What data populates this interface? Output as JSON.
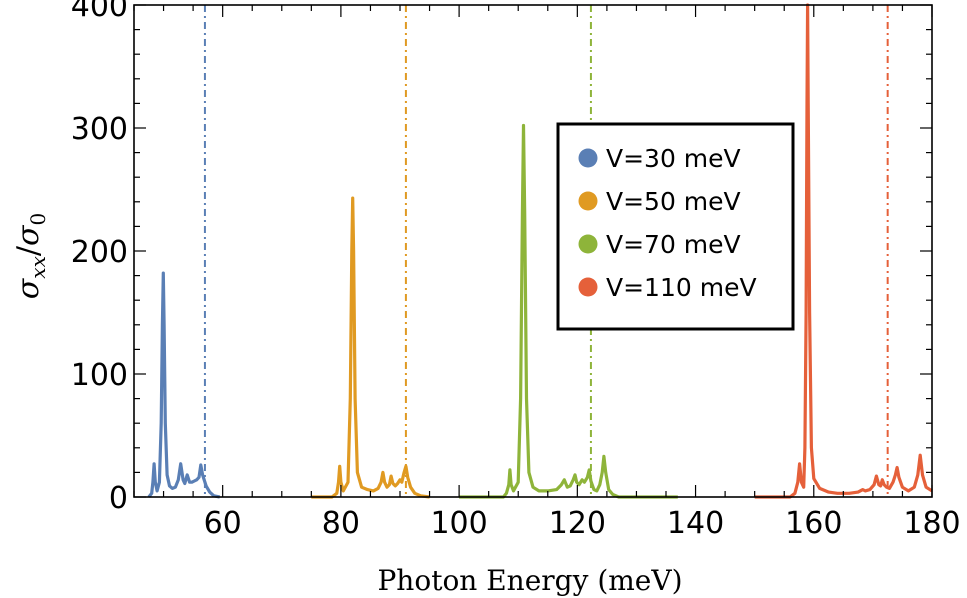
{
  "chart_data": {
    "type": "line",
    "xlabel": "Photon Energy  (meV)",
    "ylabel": "σxx/σ0",
    "ylabel_parts": {
      "sigma": "σ",
      "num_sub": "xx",
      "slash": "/",
      "den_sub": "0"
    },
    "xlim": [
      45,
      180
    ],
    "ylim": [
      0,
      400
    ],
    "x_ticks": [
      60,
      80,
      100,
      120,
      140,
      160,
      180
    ],
    "y_ticks": [
      0,
      100,
      200,
      300,
      400
    ],
    "legend_position": "center-right",
    "series": [
      {
        "name": "V=30 meV",
        "color": "#5a7fb5",
        "threshold_x": 57.0,
        "points": [
          [
            47.5,
            0
          ],
          [
            48.0,
            3
          ],
          [
            48.2,
            12
          ],
          [
            48.4,
            27
          ],
          [
            48.6,
            12
          ],
          [
            48.9,
            5
          ],
          [
            49.3,
            12
          ],
          [
            49.6,
            60
          ],
          [
            49.8,
            140
          ],
          [
            49.95,
            182
          ],
          [
            50.1,
            140
          ],
          [
            50.3,
            60
          ],
          [
            50.6,
            18
          ],
          [
            51.0,
            9
          ],
          [
            51.5,
            7
          ],
          [
            52.0,
            8
          ],
          [
            52.5,
            14
          ],
          [
            52.9,
            27
          ],
          [
            53.3,
            14
          ],
          [
            53.6,
            11
          ],
          [
            54.0,
            18
          ],
          [
            54.4,
            12
          ],
          [
            54.8,
            12
          ],
          [
            55.2,
            13
          ],
          [
            55.6,
            14
          ],
          [
            56.0,
            16
          ],
          [
            56.3,
            26
          ],
          [
            56.6,
            18
          ],
          [
            57.2,
            9
          ],
          [
            57.8,
            4
          ],
          [
            58.5,
            1
          ],
          [
            59.5,
            0
          ]
        ]
      },
      {
        "name": "V=50 meV",
        "color": "#e09a22",
        "threshold_x": 91.0,
        "points": [
          [
            75.0,
            0
          ],
          [
            78.5,
            0
          ],
          [
            79.3,
            3
          ],
          [
            79.6,
            12
          ],
          [
            79.8,
            25
          ],
          [
            80.0,
            12
          ],
          [
            80.4,
            5
          ],
          [
            81.2,
            12
          ],
          [
            81.6,
            80
          ],
          [
            81.85,
            200
          ],
          [
            82.0,
            243
          ],
          [
            82.15,
            200
          ],
          [
            82.4,
            80
          ],
          [
            82.8,
            20
          ],
          [
            83.5,
            8
          ],
          [
            84.5,
            6
          ],
          [
            85.5,
            5
          ],
          [
            86.3,
            7
          ],
          [
            86.8,
            12
          ],
          [
            87.1,
            20
          ],
          [
            87.4,
            12
          ],
          [
            87.8,
            8
          ],
          [
            88.2,
            10
          ],
          [
            88.5,
            17
          ],
          [
            88.8,
            11
          ],
          [
            89.2,
            9
          ],
          [
            89.6,
            11
          ],
          [
            90.0,
            14
          ],
          [
            90.3,
            12
          ],
          [
            90.7,
            20
          ],
          [
            91.0,
            25
          ],
          [
            91.3,
            16
          ],
          [
            91.8,
            8
          ],
          [
            92.5,
            3
          ],
          [
            93.5,
            1
          ],
          [
            95.0,
            0
          ]
        ]
      },
      {
        "name": "V=70 meV",
        "color": "#8eb43a",
        "threshold_x": 122.3,
        "points": [
          [
            100.0,
            0
          ],
          [
            107.5,
            0
          ],
          [
            108.0,
            3
          ],
          [
            108.4,
            10
          ],
          [
            108.6,
            22
          ],
          [
            108.8,
            10
          ],
          [
            109.2,
            5
          ],
          [
            110.0,
            12
          ],
          [
            110.4,
            80
          ],
          [
            110.7,
            230
          ],
          [
            110.9,
            302
          ],
          [
            111.1,
            230
          ],
          [
            111.4,
            80
          ],
          [
            111.8,
            20
          ],
          [
            112.5,
            8
          ],
          [
            113.5,
            5
          ],
          [
            115.0,
            5
          ],
          [
            116.5,
            6
          ],
          [
            117.3,
            10
          ],
          [
            117.8,
            14
          ],
          [
            118.3,
            8
          ],
          [
            118.8,
            9
          ],
          [
            119.3,
            14
          ],
          [
            119.6,
            18
          ],
          [
            119.9,
            12
          ],
          [
            120.3,
            10
          ],
          [
            120.8,
            14
          ],
          [
            121.2,
            12
          ],
          [
            121.7,
            16
          ],
          [
            122.0,
            22
          ],
          [
            122.3,
            13
          ],
          [
            122.8,
            6
          ],
          [
            123.3,
            5
          ],
          [
            123.8,
            10
          ],
          [
            124.2,
            20
          ],
          [
            124.5,
            33
          ],
          [
            124.8,
            20
          ],
          [
            125.3,
            6
          ],
          [
            126.0,
            2
          ],
          [
            127.0,
            0
          ],
          [
            137.0,
            0
          ]
        ]
      },
      {
        "name": "V=110 meV",
        "color": "#e5603a",
        "threshold_x": 172.5,
        "points": [
          [
            150.0,
            0
          ],
          [
            156.0,
            0
          ],
          [
            156.8,
            3
          ],
          [
            157.3,
            12
          ],
          [
            157.6,
            27
          ],
          [
            157.9,
            12
          ],
          [
            158.3,
            8
          ],
          [
            158.5,
            40
          ],
          [
            158.7,
            150
          ],
          [
            158.85,
            320
          ],
          [
            158.95,
            400
          ],
          [
            159.05,
            320
          ],
          [
            159.3,
            150
          ],
          [
            159.6,
            40
          ],
          [
            160.0,
            15
          ],
          [
            161.0,
            7
          ],
          [
            162.5,
            4
          ],
          [
            164.0,
            3
          ],
          [
            166.0,
            3
          ],
          [
            167.5,
            4
          ],
          [
            168.3,
            6
          ],
          [
            168.7,
            5
          ],
          [
            169.5,
            6
          ],
          [
            170.2,
            10
          ],
          [
            170.6,
            17
          ],
          [
            171.0,
            10
          ],
          [
            171.3,
            9
          ],
          [
            171.6,
            14
          ],
          [
            171.9,
            10
          ],
          [
            172.3,
            8
          ],
          [
            172.8,
            7
          ],
          [
            173.4,
            12
          ],
          [
            173.8,
            18
          ],
          [
            174.1,
            24
          ],
          [
            174.4,
            16
          ],
          [
            175.0,
            8
          ],
          [
            176.0,
            5
          ],
          [
            177.0,
            8
          ],
          [
            177.6,
            18
          ],
          [
            178.0,
            34
          ],
          [
            178.4,
            18
          ],
          [
            179.0,
            8
          ],
          [
            180.0,
            5
          ]
        ]
      }
    ]
  }
}
